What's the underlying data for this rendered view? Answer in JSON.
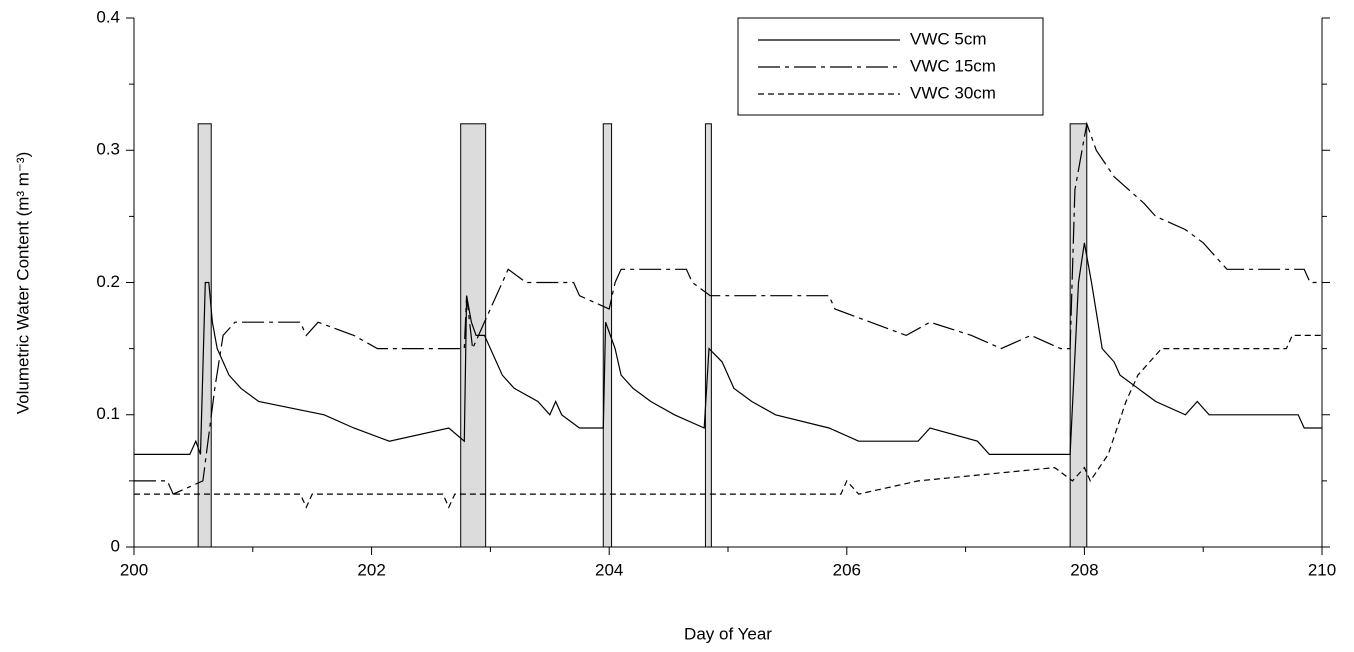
{
  "chart_data": {
    "type": "line",
    "xlabel": "Day of Year",
    "ylabel": "Volumetric Water Content (m³ m⁻³)",
    "xlim": [
      200,
      210
    ],
    "ylim": [
      0,
      0.4
    ],
    "xticks": [
      200,
      202,
      204,
      206,
      208,
      210
    ],
    "xminorticks": [
      201,
      203,
      205,
      207,
      209
    ],
    "yticks": [
      0,
      0.1,
      0.2,
      0.3,
      0.4
    ],
    "yminorticks": [
      0.05,
      0.15,
      0.25,
      0.35
    ],
    "legend": "top-right",
    "events": {
      "color": "#dcdcdc",
      "x0": [
        200.54,
        202.75,
        203.95,
        204.81,
        207.88
      ],
      "x1": [
        200.65,
        202.96,
        204.02,
        204.86,
        208.02
      ],
      "values": [
        0.32,
        0.32,
        0.32,
        0.32,
        0.32
      ]
    },
    "series": [
      {
        "name": "VWC 5cm",
        "color": "#000000",
        "dash": "none",
        "x": [
          200,
          200.47,
          200.52,
          200.56,
          200.6,
          200.63,
          200.66,
          200.7,
          200.75,
          200.8,
          200.9,
          201.05,
          201.6,
          201.85,
          202.15,
          202.65,
          202.78,
          202.8,
          202.84,
          202.88,
          202.95,
          203.0,
          203.1,
          203.2,
          203.4,
          203.5,
          203.55,
          203.6,
          203.75,
          203.95,
          203.97,
          204.05,
          204.1,
          204.2,
          204.35,
          204.55,
          204.8,
          204.84,
          204.95,
          205.05,
          205.2,
          205.4,
          205.85,
          206.1,
          206.6,
          206.7,
          207.1,
          207.2,
          207.8,
          207.88,
          207.95,
          208.0,
          208.06,
          208.15,
          208.25,
          208.3,
          208.45,
          208.6,
          208.85,
          208.95,
          209.05,
          209.8,
          209.85,
          210
        ],
        "values": [
          0.07,
          0.07,
          0.08,
          0.07,
          0.2,
          0.2,
          0.17,
          0.15,
          0.14,
          0.13,
          0.12,
          0.11,
          0.1,
          0.09,
          0.08,
          0.09,
          0.08,
          0.19,
          0.17,
          0.16,
          0.16,
          0.15,
          0.13,
          0.12,
          0.11,
          0.1,
          0.11,
          0.1,
          0.09,
          0.09,
          0.17,
          0.15,
          0.13,
          0.12,
          0.11,
          0.1,
          0.09,
          0.15,
          0.14,
          0.12,
          0.11,
          0.1,
          0.09,
          0.08,
          0.08,
          0.09,
          0.08,
          0.07,
          0.07,
          0.07,
          0.2,
          0.23,
          0.2,
          0.15,
          0.14,
          0.13,
          0.12,
          0.11,
          0.1,
          0.11,
          0.1,
          0.1,
          0.09,
          0.09
        ]
      },
      {
        "name": "VWC 15cm",
        "color": "#000000",
        "dash": "22,5,4,5",
        "x": [
          200,
          200.28,
          200.33,
          200.58,
          200.68,
          200.75,
          200.85,
          201.4,
          201.45,
          201.55,
          201.85,
          202.05,
          202.78,
          202.8,
          202.85,
          203.05,
          203.1,
          203.15,
          203.3,
          203.7,
          203.75,
          204.0,
          204.05,
          204.1,
          204.65,
          204.7,
          204.85,
          205.85,
          205.9,
          206.2,
          206.5,
          206.7,
          207.05,
          207.3,
          207.55,
          207.8,
          207.88,
          207.92,
          208.02,
          208.1,
          208.25,
          208.5,
          208.6,
          208.85,
          209.0,
          209.1,
          209.2,
          209.85,
          209.9,
          210
        ],
        "values": [
          0.05,
          0.05,
          0.04,
          0.05,
          0.12,
          0.16,
          0.17,
          0.17,
          0.16,
          0.17,
          0.16,
          0.15,
          0.15,
          0.19,
          0.15,
          0.19,
          0.2,
          0.21,
          0.2,
          0.2,
          0.19,
          0.18,
          0.2,
          0.21,
          0.21,
          0.2,
          0.19,
          0.19,
          0.18,
          0.17,
          0.16,
          0.17,
          0.16,
          0.15,
          0.16,
          0.15,
          0.15,
          0.27,
          0.32,
          0.3,
          0.28,
          0.26,
          0.25,
          0.24,
          0.23,
          0.22,
          0.21,
          0.21,
          0.2,
          0.2
        ]
      },
      {
        "name": "VWC 30cm",
        "color": "#000000",
        "dash": "6,4",
        "x": [
          200,
          201.4,
          201.45,
          201.5,
          202.6,
          202.65,
          202.7,
          205.95,
          206.0,
          206.1,
          206.6,
          207.75,
          207.9,
          208.0,
          208.05,
          208.2,
          208.35,
          208.45,
          208.55,
          208.65,
          209.7,
          209.75,
          210
        ],
        "values": [
          0.04,
          0.04,
          0.03,
          0.04,
          0.04,
          0.03,
          0.04,
          0.04,
          0.05,
          0.04,
          0.05,
          0.06,
          0.05,
          0.06,
          0.05,
          0.07,
          0.11,
          0.13,
          0.14,
          0.15,
          0.15,
          0.16,
          0.16
        ]
      }
    ]
  }
}
